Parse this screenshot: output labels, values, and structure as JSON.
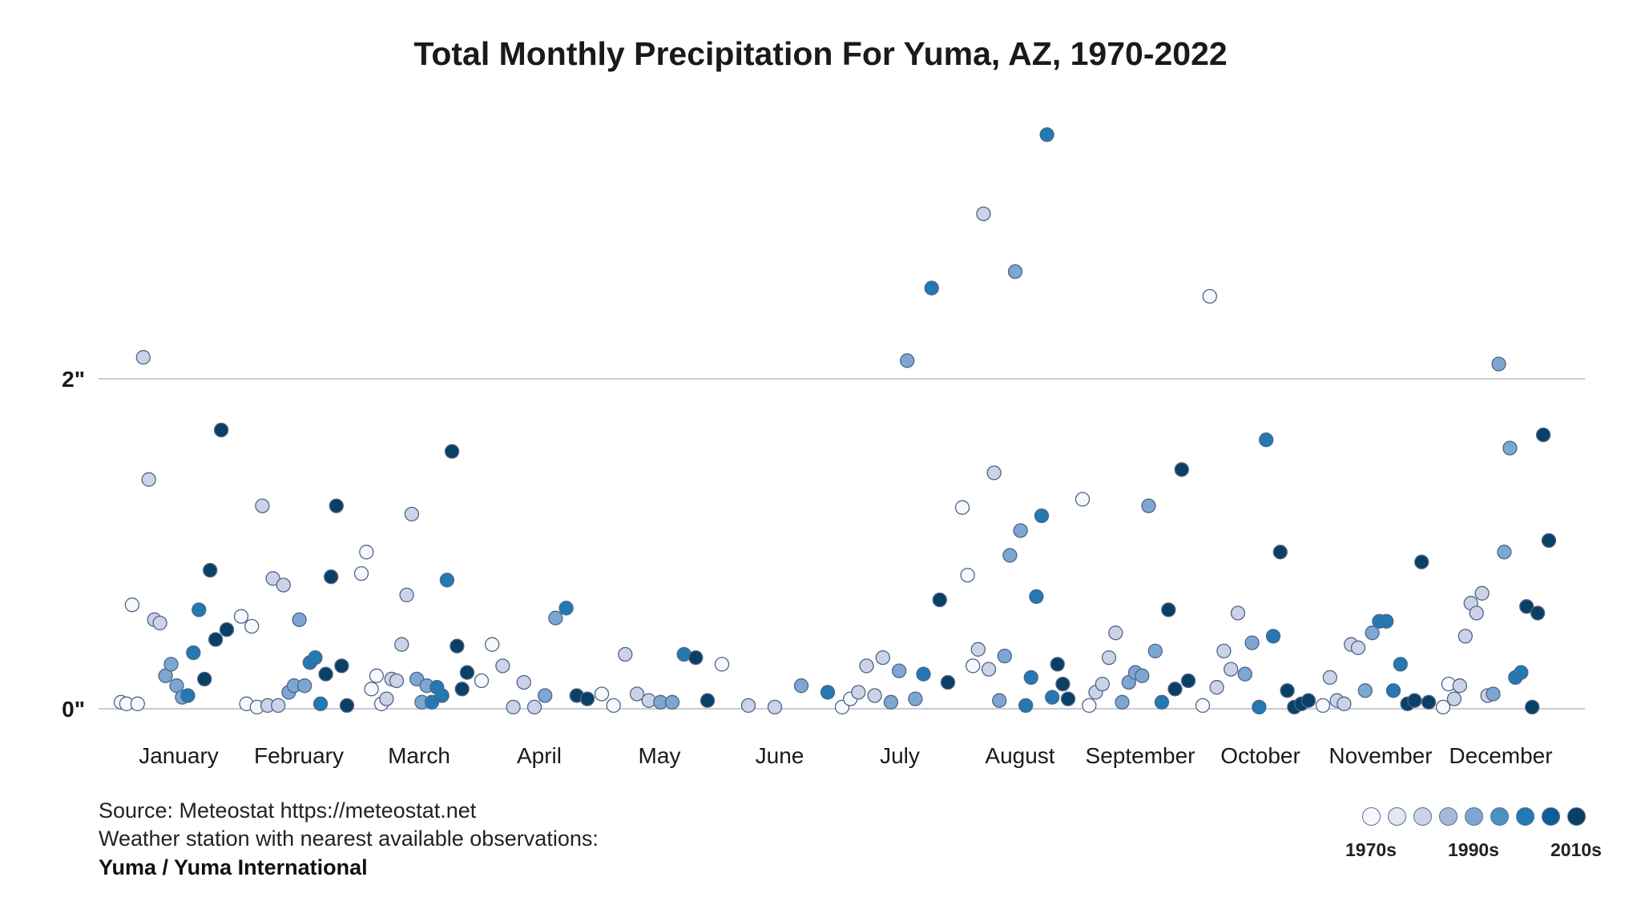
{
  "chart_data": {
    "type": "scatter",
    "title": "Total Monthly Precipitation For Yuma, AZ, 1970-2022",
    "categories": [
      "January",
      "February",
      "March",
      "April",
      "May",
      "June",
      "July",
      "August",
      "September",
      "October",
      "November",
      "December"
    ],
    "y_ticks": [
      {
        "value": 0,
        "label": "0\""
      },
      {
        "value": 2,
        "label": "2\""
      }
    ],
    "ylim": [
      0,
      3.6
    ],
    "y_unit": "inches",
    "grid": true,
    "legend": {
      "placement": "bottom-right",
      "labels": [
        "1970s",
        "1990s",
        "2010s"
      ],
      "color_scale": [
        "#f7f8fd",
        "#e4e6f3",
        "#ccd2e8",
        "#a6b9da",
        "#7ea6d2",
        "#4a92c4",
        "#2379b3",
        "#0e5d99",
        "#0a3f66"
      ]
    },
    "series": [
      {
        "month": "January",
        "points": [
          {
            "v": 0.04,
            "d": 0
          },
          {
            "v": 0.03,
            "d": 0
          },
          {
            "v": 0.63,
            "d": 0
          },
          {
            "v": 0.03,
            "d": 0
          },
          {
            "v": 2.13,
            "d": 1
          },
          {
            "v": 1.39,
            "d": 1
          },
          {
            "v": 0.54,
            "d": 1
          },
          {
            "v": 0.52,
            "d": 1
          },
          {
            "v": 0.2,
            "d": 2
          },
          {
            "v": 0.27,
            "d": 2
          },
          {
            "v": 0.14,
            "d": 2
          },
          {
            "v": 0.07,
            "d": 2
          },
          {
            "v": 0.08,
            "d": 3
          },
          {
            "v": 0.34,
            "d": 3
          },
          {
            "v": 0.6,
            "d": 3
          },
          {
            "v": 0.18,
            "d": 4
          },
          {
            "v": 0.84,
            "d": 4
          },
          {
            "v": 0.42,
            "d": 4
          },
          {
            "v": 1.69,
            "d": 4
          },
          {
            "v": 0.48,
            "d": 5
          }
        ]
      },
      {
        "month": "February",
        "points": [
          {
            "v": 0.56,
            "d": 0
          },
          {
            "v": 0.03,
            "d": 0
          },
          {
            "v": 0.5,
            "d": 0
          },
          {
            "v": 0.01,
            "d": 0
          },
          {
            "v": 1.23,
            "d": 1
          },
          {
            "v": 0.02,
            "d": 1
          },
          {
            "v": 0.79,
            "d": 1
          },
          {
            "v": 0.02,
            "d": 1
          },
          {
            "v": 0.75,
            "d": 1
          },
          {
            "v": 0.1,
            "d": 2
          },
          {
            "v": 0.14,
            "d": 2
          },
          {
            "v": 0.54,
            "d": 2
          },
          {
            "v": 0.14,
            "d": 2
          },
          {
            "v": 0.28,
            "d": 3
          },
          {
            "v": 0.31,
            "d": 3
          },
          {
            "v": 0.03,
            "d": 3
          },
          {
            "v": 0.21,
            "d": 4
          },
          {
            "v": 0.8,
            "d": 4
          },
          {
            "v": 1.23,
            "d": 4
          },
          {
            "v": 0.26,
            "d": 4
          },
          {
            "v": 0.02,
            "d": 4
          }
        ]
      },
      {
        "month": "March",
        "points": [
          {
            "v": 0.82,
            "d": 0
          },
          {
            "v": 0.95,
            "d": 0
          },
          {
            "v": 0.12,
            "d": 0
          },
          {
            "v": 0.2,
            "d": 0
          },
          {
            "v": 0.03,
            "d": 0
          },
          {
            "v": 0.06,
            "d": 1
          },
          {
            "v": 0.18,
            "d": 1
          },
          {
            "v": 0.17,
            "d": 1
          },
          {
            "v": 0.39,
            "d": 1
          },
          {
            "v": 0.69,
            "d": 1
          },
          {
            "v": 1.18,
            "d": 1
          },
          {
            "v": 0.18,
            "d": 2
          },
          {
            "v": 0.04,
            "d": 2
          },
          {
            "v": 0.14,
            "d": 2
          },
          {
            "v": 0.04,
            "d": 3
          },
          {
            "v": 0.13,
            "d": 3
          },
          {
            "v": 0.08,
            "d": 3
          },
          {
            "v": 0.78,
            "d": 3
          },
          {
            "v": 1.56,
            "d": 4
          },
          {
            "v": 0.38,
            "d": 4
          },
          {
            "v": 0.12,
            "d": 4
          },
          {
            "v": 0.22,
            "d": 4
          }
        ]
      },
      {
        "month": "April",
        "points": [
          {
            "v": 0.17,
            "d": 0
          },
          {
            "v": 0.39,
            "d": 0
          },
          {
            "v": 0.26,
            "d": 1
          },
          {
            "v": 0.01,
            "d": 1
          },
          {
            "v": 0.16,
            "d": 1
          },
          {
            "v": 0.01,
            "d": 1
          },
          {
            "v": 0.08,
            "d": 2
          },
          {
            "v": 0.55,
            "d": 2
          },
          {
            "v": 0.61,
            "d": 3
          },
          {
            "v": 0.08,
            "d": 4
          },
          {
            "v": 0.06,
            "d": 4
          }
        ]
      },
      {
        "month": "May",
        "points": [
          {
            "v": 0.09,
            "d": 0
          },
          {
            "v": 0.02,
            "d": 0
          },
          {
            "v": 0.33,
            "d": 1
          },
          {
            "v": 0.09,
            "d": 1
          },
          {
            "v": 0.05,
            "d": 1
          },
          {
            "v": 0.04,
            "d": 2
          },
          {
            "v": 0.04,
            "d": 2
          },
          {
            "v": 0.33,
            "d": 3
          },
          {
            "v": 0.31,
            "d": 4
          },
          {
            "v": 0.05,
            "d": 4
          }
        ]
      },
      {
        "month": "June",
        "points": [
          {
            "v": 0.27,
            "d": 0
          },
          {
            "v": 0.02,
            "d": 1
          },
          {
            "v": 0.01,
            "d": 1
          },
          {
            "v": 0.14,
            "d": 2
          },
          {
            "v": 0.1,
            "d": 3
          }
        ]
      },
      {
        "month": "July",
        "points": [
          {
            "v": 0.01,
            "d": 0
          },
          {
            "v": 0.06,
            "d": 0
          },
          {
            "v": 0.1,
            "d": 1
          },
          {
            "v": 0.26,
            "d": 1
          },
          {
            "v": 0.08,
            "d": 1
          },
          {
            "v": 0.31,
            "d": 1
          },
          {
            "v": 0.04,
            "d": 2
          },
          {
            "v": 0.23,
            "d": 2
          },
          {
            "v": 2.11,
            "d": 2
          },
          {
            "v": 0.06,
            "d": 2
          },
          {
            "v": 0.21,
            "d": 3
          },
          {
            "v": 2.55,
            "d": 3
          },
          {
            "v": 0.66,
            "d": 4
          },
          {
            "v": 0.16,
            "d": 4
          }
        ]
      },
      {
        "month": "August",
        "points": [
          {
            "v": 1.22,
            "d": 0
          },
          {
            "v": 0.81,
            "d": 0
          },
          {
            "v": 0.26,
            "d": 0
          },
          {
            "v": 0.36,
            "d": 1
          },
          {
            "v": 3.0,
            "d": 1
          },
          {
            "v": 0.24,
            "d": 1
          },
          {
            "v": 1.43,
            "d": 1
          },
          {
            "v": 0.05,
            "d": 2
          },
          {
            "v": 0.32,
            "d": 2
          },
          {
            "v": 0.93,
            "d": 2
          },
          {
            "v": 2.65,
            "d": 2
          },
          {
            "v": 1.08,
            "d": 2
          },
          {
            "v": 0.02,
            "d": 3
          },
          {
            "v": 0.19,
            "d": 3
          },
          {
            "v": 0.68,
            "d": 3
          },
          {
            "v": 1.17,
            "d": 3
          },
          {
            "v": 3.48,
            "d": 3
          },
          {
            "v": 0.07,
            "d": 3
          },
          {
            "v": 0.27,
            "d": 4
          },
          {
            "v": 0.15,
            "d": 4
          },
          {
            "v": 0.06,
            "d": 4
          }
        ]
      },
      {
        "month": "September",
        "points": [
          {
            "v": 1.27,
            "d": 0
          },
          {
            "v": 0.02,
            "d": 0
          },
          {
            "v": 0.1,
            "d": 1
          },
          {
            "v": 0.15,
            "d": 1
          },
          {
            "v": 0.31,
            "d": 1
          },
          {
            "v": 0.46,
            "d": 1
          },
          {
            "v": 0.04,
            "d": 2
          },
          {
            "v": 0.16,
            "d": 2
          },
          {
            "v": 0.22,
            "d": 2
          },
          {
            "v": 0.2,
            "d": 2
          },
          {
            "v": 1.23,
            "d": 2
          },
          {
            "v": 0.35,
            "d": 2
          },
          {
            "v": 0.04,
            "d": 3
          },
          {
            "v": 0.6,
            "d": 4
          },
          {
            "v": 0.12,
            "d": 4
          },
          {
            "v": 1.45,
            "d": 4
          },
          {
            "v": 0.17,
            "d": 4
          }
        ]
      },
      {
        "month": "October",
        "points": [
          {
            "v": 0.02,
            "d": 0
          },
          {
            "v": 2.5,
            "d": 0
          },
          {
            "v": 0.13,
            "d": 1
          },
          {
            "v": 0.35,
            "d": 1
          },
          {
            "v": 0.24,
            "d": 1
          },
          {
            "v": 0.58,
            "d": 1
          },
          {
            "v": 0.21,
            "d": 2
          },
          {
            "v": 0.4,
            "d": 2
          },
          {
            "v": 0.01,
            "d": 3
          },
          {
            "v": 1.63,
            "d": 3
          },
          {
            "v": 0.44,
            "d": 3
          },
          {
            "v": 0.95,
            "d": 4
          },
          {
            "v": 0.11,
            "d": 4
          },
          {
            "v": 0.01,
            "d": 4
          },
          {
            "v": 0.03,
            "d": 4
          },
          {
            "v": 0.05,
            "d": 5
          }
        ]
      },
      {
        "month": "November",
        "points": [
          {
            "v": 0.02,
            "d": 0
          },
          {
            "v": 0.19,
            "d": 1
          },
          {
            "v": 0.05,
            "d": 1
          },
          {
            "v": 0.03,
            "d": 1
          },
          {
            "v": 0.39,
            "d": 1
          },
          {
            "v": 0.37,
            "d": 1
          },
          {
            "v": 0.11,
            "d": 2
          },
          {
            "v": 0.46,
            "d": 2
          },
          {
            "v": 0.53,
            "d": 3
          },
          {
            "v": 0.53,
            "d": 3
          },
          {
            "v": 0.11,
            "d": 3
          },
          {
            "v": 0.27,
            "d": 3
          },
          {
            "v": 0.03,
            "d": 4
          },
          {
            "v": 0.05,
            "d": 4
          },
          {
            "v": 0.89,
            "d": 4
          },
          {
            "v": 0.04,
            "d": 4
          }
        ]
      },
      {
        "month": "December",
        "points": [
          {
            "v": 0.01,
            "d": 0
          },
          {
            "v": 0.15,
            "d": 0
          },
          {
            "v": 0.06,
            "d": 1
          },
          {
            "v": 0.14,
            "d": 1
          },
          {
            "v": 0.44,
            "d": 1
          },
          {
            "v": 0.64,
            "d": 1
          },
          {
            "v": 0.58,
            "d": 1
          },
          {
            "v": 0.7,
            "d": 1
          },
          {
            "v": 0.08,
            "d": 1
          },
          {
            "v": 0.09,
            "d": 2
          },
          {
            "v": 2.09,
            "d": 2
          },
          {
            "v": 0.95,
            "d": 2
          },
          {
            "v": 1.58,
            "d": 2
          },
          {
            "v": 0.19,
            "d": 3
          },
          {
            "v": 0.22,
            "d": 3
          },
          {
            "v": 0.62,
            "d": 4
          },
          {
            "v": 0.01,
            "d": 4
          },
          {
            "v": 0.58,
            "d": 4
          },
          {
            "v": 1.66,
            "d": 4
          },
          {
            "v": 1.02,
            "d": 4
          }
        ]
      }
    ]
  },
  "source": {
    "line1": "Source: Meteostat https://meteostat.net",
    "line2": "Weather station with nearest available observations:",
    "station": "Yuma / Yuma International"
  }
}
